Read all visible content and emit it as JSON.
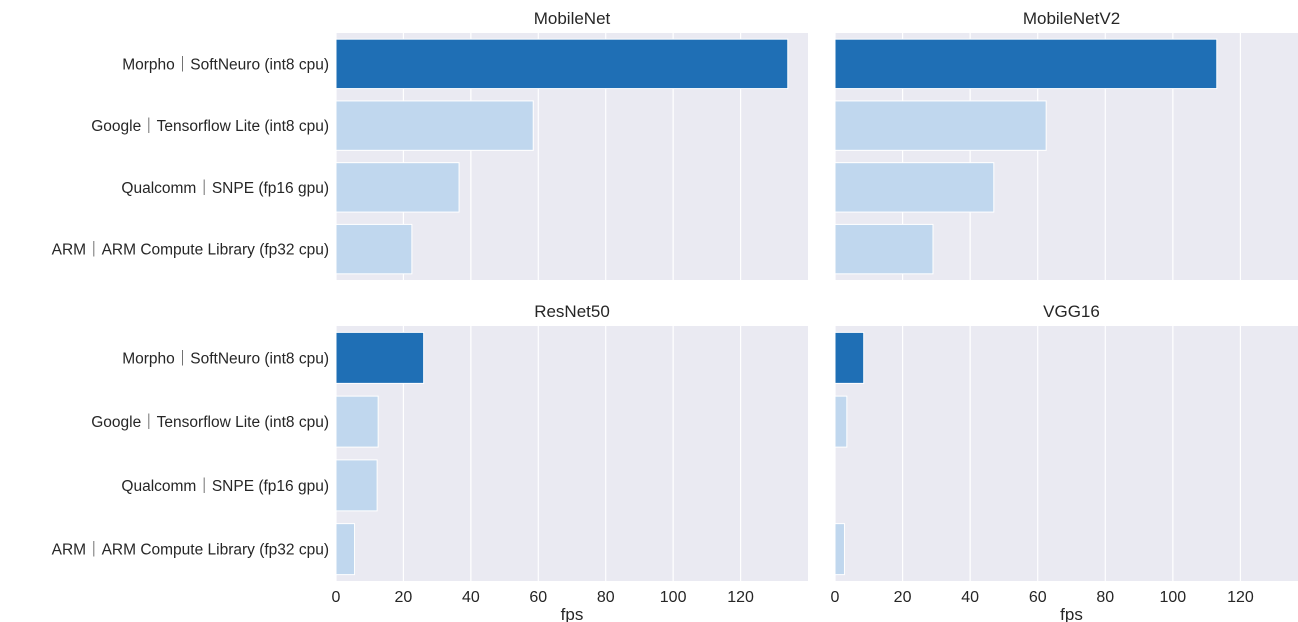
{
  "chart_data": {
    "type": "bar",
    "orientation": "horizontal",
    "layout": "2x2 facets",
    "categories": [
      "Morpho｜SoftNeuro (int8 cpu)",
      "Google｜Tensorflow Lite (int8 cpu)",
      "Qualcomm｜SNPE (fp16 gpu)",
      "ARM｜ARM Compute Library (fp32 cpu)"
    ],
    "xlabel": "fps",
    "xlim": [
      0,
      140
    ],
    "xticks": [
      0,
      20,
      40,
      60,
      80,
      100,
      120
    ],
    "grid": true,
    "background": "#eaeaf2",
    "colors": {
      "highlight": "#1f6fb5",
      "other": "#c0d7ee"
    },
    "panels": [
      {
        "title": "MobileNet",
        "values": [
          134,
          58.5,
          36.5,
          22.5
        ]
      },
      {
        "title": "MobileNetV2",
        "values": [
          113,
          62.5,
          47,
          29
        ]
      },
      {
        "title": "ResNet50",
        "values": [
          26,
          12.5,
          12.2,
          5.5
        ]
      },
      {
        "title": "VGG16",
        "values": [
          8.5,
          3.5,
          0,
          2.8
        ]
      }
    ]
  }
}
